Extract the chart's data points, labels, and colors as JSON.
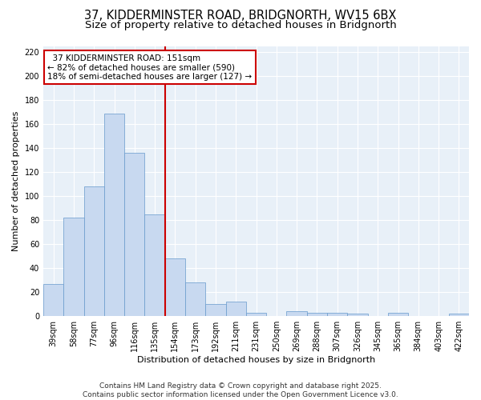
{
  "title_line1": "37, KIDDERMINSTER ROAD, BRIDGNORTH, WV15 6BX",
  "title_line2": "Size of property relative to detached houses in Bridgnorth",
  "xlabel": "Distribution of detached houses by size in Bridgnorth",
  "ylabel": "Number of detached properties",
  "categories": [
    "39sqm",
    "58sqm",
    "77sqm",
    "96sqm",
    "116sqm",
    "135sqm",
    "154sqm",
    "173sqm",
    "192sqm",
    "211sqm",
    "231sqm",
    "250sqm",
    "269sqm",
    "288sqm",
    "307sqm",
    "326sqm",
    "345sqm",
    "365sqm",
    "384sqm",
    "403sqm",
    "422sqm"
  ],
  "values": [
    27,
    82,
    108,
    169,
    136,
    85,
    48,
    28,
    10,
    12,
    3,
    0,
    4,
    3,
    3,
    2,
    0,
    3,
    0,
    0,
    2
  ],
  "bar_color": "#c8d9f0",
  "bar_edge_color": "#6699cc",
  "reference_line_color": "#cc0000",
  "annotation_box_text": "  37 KIDDERMINSTER ROAD: 151sqm\n← 82% of detached houses are smaller (590)\n18% of semi-detached houses are larger (127) →",
  "annotation_box_color": "#cc0000",
  "ylim": [
    0,
    225
  ],
  "yticks": [
    0,
    20,
    40,
    60,
    80,
    100,
    120,
    140,
    160,
    180,
    200,
    220
  ],
  "figure_bg_color": "#ffffff",
  "plot_bg_color": "#e8f0f8",
  "grid_color": "#ffffff",
  "footnote": "Contains HM Land Registry data © Crown copyright and database right 2025.\nContains public sector information licensed under the Open Government Licence v3.0.",
  "title_fontsize": 10.5,
  "subtitle_fontsize": 9.5,
  "axis_label_fontsize": 8,
  "tick_fontsize": 7,
  "annotation_fontsize": 7.5,
  "footnote_fontsize": 6.5
}
